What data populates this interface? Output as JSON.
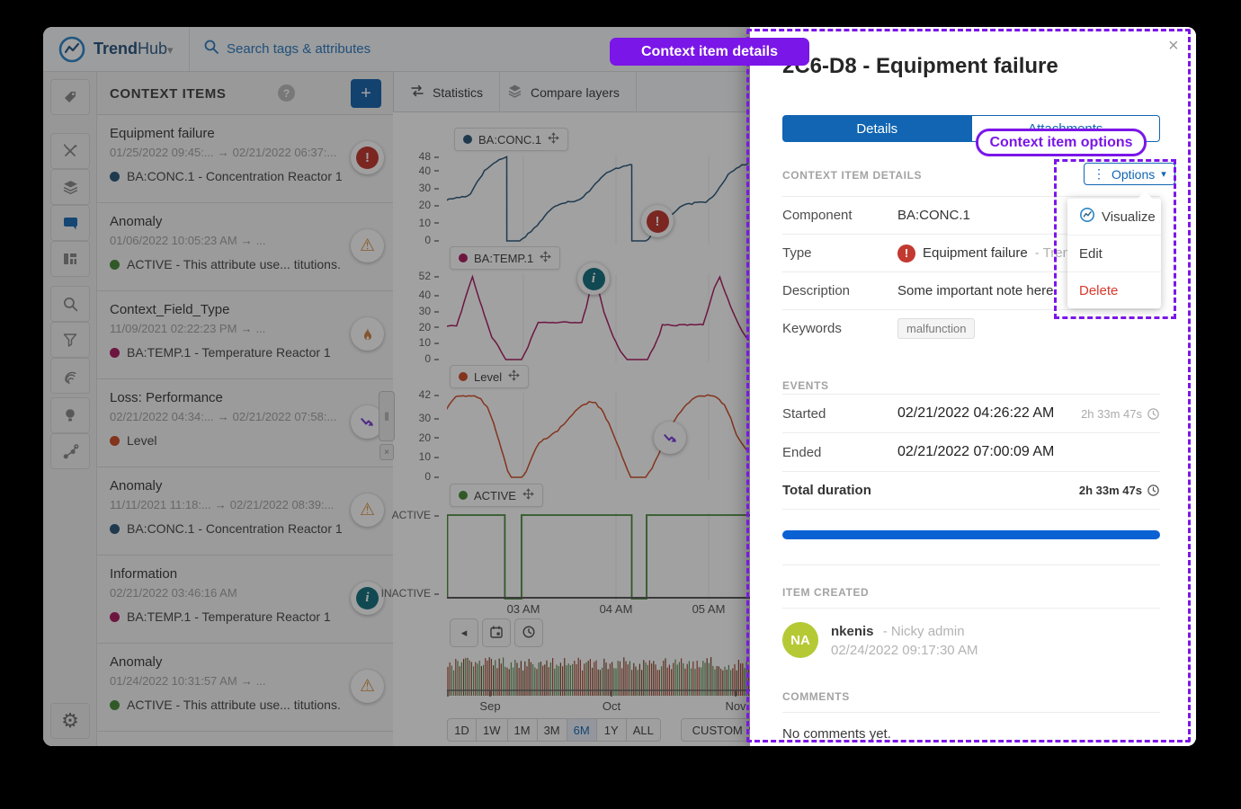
{
  "icons": {
    "arrow_right": "→",
    "close": "×",
    "chevron_down": "▾",
    "question": "?",
    "plus": "+",
    "exclamation": "!",
    "info_letter": "i",
    "warning": "⚠",
    "kebab": "⋮",
    "back": "◂",
    "double_bar": "‖",
    "gear": "⚙"
  },
  "topbar": {
    "brand_bold": "Trend",
    "brand_light": "Hub",
    "search_placeholder": "Search tags & attributes"
  },
  "sidebar": {
    "items": [
      "tag",
      "magic-wand",
      "layers",
      "comments",
      "dashboard",
      "search",
      "filter",
      "fingerprint",
      "lightbulb",
      "ml-network",
      "settings"
    ],
    "active": "comments"
  },
  "context_panel": {
    "title": "CONTEXT ITEMS",
    "items": [
      {
        "title": "Equipment failure",
        "from": "01/25/2022 09:45:...",
        "to": "02/21/2022 06:37:...",
        "tag": "BA:CONC.1 - Concentration Reactor 1",
        "tag_color": "#2e5a78",
        "badge": "error"
      },
      {
        "title": "Anomaly",
        "from": "01/06/2022 10:05:23 AM",
        "to": "...",
        "tag": "ACTIVE - This attribute use... titutions.",
        "tag_color": "#4b8b3b",
        "badge": "warning"
      },
      {
        "title": "Context_Field_Type",
        "from": "11/09/2021 02:22:23 PM",
        "to": "...",
        "tag": "BA:TEMP.1 - Temperature Reactor 1",
        "tag_color": "#aa2060",
        "badge": "flame"
      },
      {
        "title": "Loss: Performance",
        "from": "02/21/2022 04:34:...",
        "to": "02/21/2022 07:58:...",
        "tag": "Level",
        "tag_color": "#cf5027",
        "badge": "loss"
      },
      {
        "title": "Anomaly",
        "from": "11/11/2021 11:18:...",
        "to": "02/21/2022 08:39:...",
        "tag": "BA:CONC.1 - Concentration Reactor 1",
        "tag_color": "#2e5a78",
        "badge": "warning"
      },
      {
        "title": "Information",
        "from": "02/21/2022 03:46:16 AM",
        "to": "",
        "tag": "BA:TEMP.1 - Temperature Reactor 1",
        "tag_color": "#aa2060",
        "badge": "info"
      },
      {
        "title": "Anomaly",
        "from": "01/24/2022 10:31:57 AM",
        "to": "...",
        "tag": "ACTIVE - This attribute use... titutions.",
        "tag_color": "#4b8b3b",
        "badge": "warning"
      }
    ]
  },
  "chart_toolbar": {
    "statistics": "Statistics",
    "compare": "Compare layers"
  },
  "chart_area": {
    "xticks": [
      "03 AM",
      "04 AM",
      "05 AM"
    ],
    "month_ticks": [
      "Sep",
      "Oct",
      "Nov"
    ],
    "range_buttons": [
      "1D",
      "1W",
      "1M",
      "3M",
      "6M",
      "1Y",
      "ALL"
    ],
    "active_range": "6M",
    "custom_label": "CUSTOM",
    "minimap_colors": [
      "#a84b32",
      "#5f8f50",
      "#7a4a28"
    ]
  },
  "chart_data": [
    {
      "type": "line",
      "name": "BA:CONC.1",
      "color": "#2e5a78",
      "ymax": 48,
      "noise": 0.5,
      "yticks": [
        48,
        40,
        30,
        20,
        10,
        0
      ],
      "xlabel_unit": "time of day (AM hours)",
      "points": [
        [
          2.17,
          23.5
        ],
        [
          2.25,
          24.5
        ],
        [
          2.31,
          25
        ],
        [
          2.37,
          25.5
        ],
        [
          2.43,
          27
        ],
        [
          2.5,
          34
        ],
        [
          2.58,
          40
        ],
        [
          2.64,
          43
        ],
        [
          2.68,
          44.5
        ],
        [
          2.74,
          46.5
        ],
        [
          2.79,
          48
        ],
        [
          2.82,
          48
        ],
        [
          2.821,
          0
        ],
        [
          2.96,
          0
        ],
        [
          3.05,
          4
        ],
        [
          3.15,
          9
        ],
        [
          3.26,
          16
        ],
        [
          3.34,
          20
        ],
        [
          3.4,
          21.5
        ],
        [
          3.48,
          22.5
        ],
        [
          3.55,
          23
        ],
        [
          3.61,
          24
        ],
        [
          3.68,
          27
        ],
        [
          3.78,
          33
        ],
        [
          3.9,
          39
        ],
        [
          4.0,
          41.5
        ],
        [
          4.08,
          43
        ],
        [
          4.15,
          44
        ],
        [
          4.17,
          44
        ],
        [
          4.171,
          0
        ],
        [
          4.32,
          0
        ],
        [
          4.41,
          4
        ],
        [
          4.5,
          10
        ],
        [
          4.62,
          16
        ],
        [
          4.69,
          19
        ],
        [
          4.73,
          20.5
        ],
        [
          4.82,
          21.5
        ],
        [
          4.9,
          22
        ],
        [
          4.97,
          22.5
        ],
        [
          5.04,
          25
        ],
        [
          5.12,
          31
        ],
        [
          5.21,
          38
        ],
        [
          5.3,
          42
        ],
        [
          5.36,
          43.5
        ],
        [
          5.43,
          44.5
        ]
      ]
    },
    {
      "type": "line",
      "name": "BA:TEMP.1",
      "color": "#aa2060",
      "ymax": 52,
      "noise": 0.3,
      "yticks": [
        52,
        40,
        30,
        20,
        10,
        0
      ],
      "points": [
        [
          2.17,
          21
        ],
        [
          2.28,
          21.5
        ],
        [
          2.33,
          30
        ],
        [
          2.39,
          42
        ],
        [
          2.45,
          52
        ],
        [
          2.5,
          42
        ],
        [
          2.58,
          28
        ],
        [
          2.66,
          14
        ],
        [
          2.71,
          10
        ],
        [
          2.76,
          5
        ],
        [
          2.81,
          0
        ],
        [
          2.98,
          0
        ],
        [
          3.05,
          8
        ],
        [
          3.11,
          17
        ],
        [
          3.16,
          23.5
        ],
        [
          3.29,
          23
        ],
        [
          3.44,
          23.5
        ],
        [
          3.58,
          23
        ],
        [
          3.63,
          23.5
        ],
        [
          3.68,
          33
        ],
        [
          3.72,
          44
        ],
        [
          3.76,
          52
        ],
        [
          3.81,
          44
        ],
        [
          3.87,
          30
        ],
        [
          3.97,
          14
        ],
        [
          4.05,
          5
        ],
        [
          4.12,
          0
        ],
        [
          4.34,
          0
        ],
        [
          4.41,
          8
        ],
        [
          4.47,
          16
        ],
        [
          4.5,
          22
        ],
        [
          4.65,
          21.5
        ],
        [
          4.8,
          22
        ],
        [
          4.94,
          22
        ],
        [
          5.0,
          33
        ],
        [
          5.06,
          45
        ],
        [
          5.12,
          52
        ],
        [
          5.18,
          42
        ],
        [
          5.26,
          30
        ],
        [
          5.36,
          18
        ],
        [
          5.43,
          12
        ]
      ]
    },
    {
      "type": "line",
      "name": "Level",
      "color": "#cf5027",
      "ymax": 42,
      "noise": 0.4,
      "yticks": [
        42,
        30,
        20,
        10,
        0
      ],
      "points": [
        [
          2.17,
          35
        ],
        [
          2.22,
          39
        ],
        [
          2.27,
          41.5
        ],
        [
          2.35,
          42
        ],
        [
          2.47,
          41.5
        ],
        [
          2.54,
          40
        ],
        [
          2.61,
          36
        ],
        [
          2.68,
          28
        ],
        [
          2.74,
          18
        ],
        [
          2.79,
          10
        ],
        [
          2.83,
          3
        ],
        [
          2.87,
          0
        ],
        [
          2.98,
          0
        ],
        [
          3.03,
          3
        ],
        [
          3.1,
          11
        ],
        [
          3.17,
          18
        ],
        [
          3.22,
          19.5
        ],
        [
          3.29,
          21
        ],
        [
          3.37,
          24
        ],
        [
          3.47,
          29
        ],
        [
          3.56,
          34
        ],
        [
          3.63,
          37
        ],
        [
          3.71,
          38.5
        ],
        [
          3.78,
          38
        ],
        [
          3.84,
          35
        ],
        [
          3.92,
          28
        ],
        [
          4.0,
          19
        ],
        [
          4.07,
          10
        ],
        [
          4.12,
          4
        ],
        [
          4.16,
          0
        ],
        [
          4.32,
          0
        ],
        [
          4.39,
          5
        ],
        [
          4.47,
          13
        ],
        [
          4.55,
          22
        ],
        [
          4.64,
          30
        ],
        [
          4.73,
          36
        ],
        [
          4.82,
          40
        ],
        [
          4.89,
          41.5
        ],
        [
          4.99,
          42
        ],
        [
          5.09,
          41
        ],
        [
          5.17,
          37
        ],
        [
          5.24,
          30
        ],
        [
          5.3,
          22
        ],
        [
          5.36,
          17
        ],
        [
          5.43,
          13
        ]
      ]
    },
    {
      "type": "step",
      "name": "ACTIVE",
      "color": "#4b8b3b",
      "ymax": 1,
      "ytick_labels": [
        "ACTIVE",
        "INACTIVE"
      ],
      "points": [
        [
          2.18,
          0
        ],
        [
          2.18,
          1
        ],
        [
          2.8,
          1
        ],
        [
          2.8,
          0
        ],
        [
          2.98,
          0
        ],
        [
          2.98,
          1
        ],
        [
          4.17,
          1
        ],
        [
          4.17,
          0
        ],
        [
          4.33,
          0
        ],
        [
          4.33,
          1
        ],
        [
          5.45,
          1
        ]
      ]
    }
  ],
  "detail_panel": {
    "title": "2C6-D8 - Equipment failure",
    "tabs": {
      "details": "Details",
      "attachments": "Attachments"
    },
    "section_details": "CONTEXT ITEM DETAILS",
    "options_label": "Options",
    "fields": {
      "component_label": "Component",
      "component": "BA:CONC.1",
      "type_label": "Type",
      "type_value": "Equipment failure",
      "type_suffix": "- TrendN",
      "description_label": "Description",
      "description": "Some important note here.",
      "keywords_label": "Keywords",
      "keyword": "malfunction"
    },
    "menu": {
      "visualize": "Visualize",
      "edit": "Edit",
      "delete": "Delete"
    },
    "events": {
      "header": "EVENTS",
      "started_label": "Started",
      "started": "02/21/2022 04:26:22 AM",
      "started_duration": "2h 33m 47s",
      "ended_label": "Ended",
      "ended": "02/21/2022 07:00:09 AM",
      "total_label": "Total duration",
      "total": "2h 33m 47s"
    },
    "created": {
      "header": "ITEM CREATED",
      "initials": "NA",
      "username": "nkenis",
      "display": "- Nicky admin",
      "timestamp": "02/24/2022 09:17:30 AM"
    },
    "comments": {
      "header": "COMMENTS",
      "empty": "No comments yet."
    },
    "accent_blue": "#1165b2",
    "progress_blue": "#0a61d4",
    "avatar_green": "#b5c934",
    "delete_red": "#d9372c"
  },
  "annotations": {
    "details": "Context item details",
    "options": "Context item options",
    "color": "#7b16e8"
  }
}
